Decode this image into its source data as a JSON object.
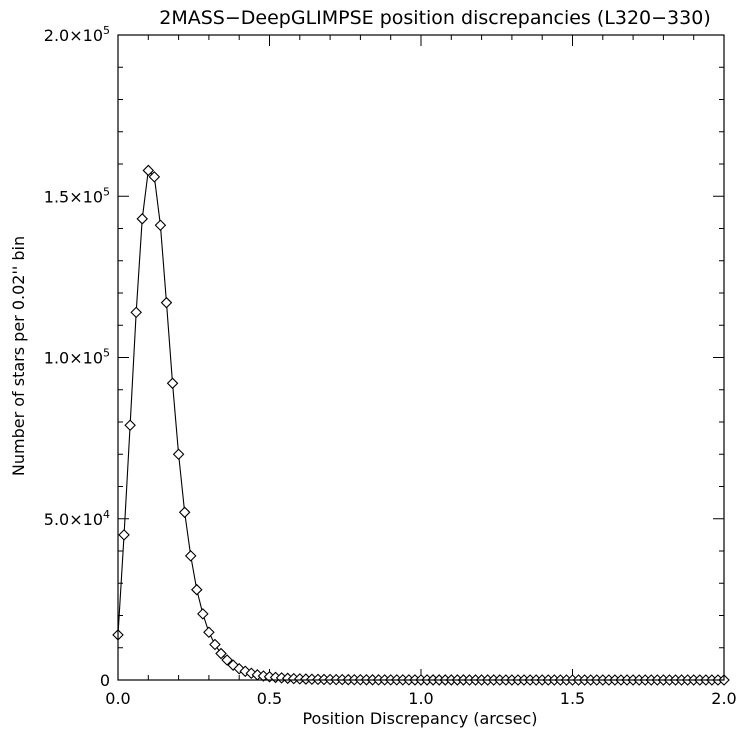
{
  "chart_data": {
    "type": "line",
    "title": "2MASS−DeepGLIMPSE position discrepancies (L320−330)",
    "xlabel": "Position Discrepancy (arcsec)",
    "ylabel": "Number of stars per 0.02'' bin",
    "xlim": [
      0.0,
      2.0
    ],
    "ylim": [
      0,
      200000
    ],
    "x_ticks": [
      "0.0",
      "0.5",
      "1.0",
      "1.5",
      "2.0"
    ],
    "y_ticks": [
      {
        "mant": "0",
        "exp": ""
      },
      {
        "mant": "5.0×10",
        "exp": "4"
      },
      {
        "mant": "1.0×10",
        "exp": "5"
      },
      {
        "mant": "1.5×10",
        "exp": "5"
      },
      {
        "mant": "2.0×10",
        "exp": "5"
      }
    ],
    "marker": "diamond",
    "grid": false,
    "series": [
      {
        "color": "#000000",
        "x": [
          0.0,
          0.02,
          0.04,
          0.06,
          0.08,
          0.1,
          0.12,
          0.14,
          0.16,
          0.18,
          0.2,
          0.22,
          0.24,
          0.26,
          0.28,
          0.3,
          0.32,
          0.34,
          0.36,
          0.38,
          0.4,
          0.42,
          0.44,
          0.46,
          0.48,
          0.5,
          0.52,
          0.54,
          0.56,
          0.58,
          0.6,
          0.62,
          0.64,
          0.66,
          0.68,
          0.7,
          0.72,
          0.74,
          0.76,
          0.78,
          0.8,
          0.82,
          0.84,
          0.86,
          0.88,
          0.9,
          0.92,
          0.94,
          0.96,
          0.98,
          1.0,
          1.02,
          1.04,
          1.06,
          1.08,
          1.1,
          1.12,
          1.14,
          1.16,
          1.18,
          1.2,
          1.22,
          1.24,
          1.26,
          1.28,
          1.3,
          1.32,
          1.34,
          1.36,
          1.38,
          1.4,
          1.42,
          1.44,
          1.46,
          1.48,
          1.5,
          1.52,
          1.54,
          1.56,
          1.58,
          1.6,
          1.62,
          1.64,
          1.66,
          1.68,
          1.7,
          1.72,
          1.74,
          1.76,
          1.78,
          1.8,
          1.82,
          1.84,
          1.86,
          1.88,
          1.9,
          1.92,
          1.94,
          1.96,
          1.98,
          2.0
        ],
        "y": [
          14000,
          45000,
          79000,
          114000,
          143000,
          158000,
          156000,
          141000,
          117000,
          92000,
          70000,
          52000,
          38500,
          28000,
          20500,
          14800,
          11000,
          8200,
          6200,
          4600,
          3500,
          2700,
          2100,
          1600,
          1250,
          1000,
          800,
          650,
          520,
          430,
          350,
          290,
          240,
          200,
          170,
          145,
          125,
          110,
          95,
          85,
          75,
          66,
          58,
          52,
          46,
          42,
          38,
          34,
          31,
          28,
          26,
          24,
          22,
          20,
          19,
          18,
          17,
          16,
          15,
          14,
          13,
          12,
          12,
          11,
          10,
          10,
          9,
          9,
          8,
          8,
          8,
          7,
          7,
          7,
          6,
          6,
          6,
          6,
          5,
          5,
          5,
          5,
          5,
          4,
          4,
          4,
          4,
          4,
          4,
          3,
          3,
          3,
          3,
          3,
          3,
          3,
          3,
          3,
          2,
          2,
          2
        ]
      }
    ]
  }
}
